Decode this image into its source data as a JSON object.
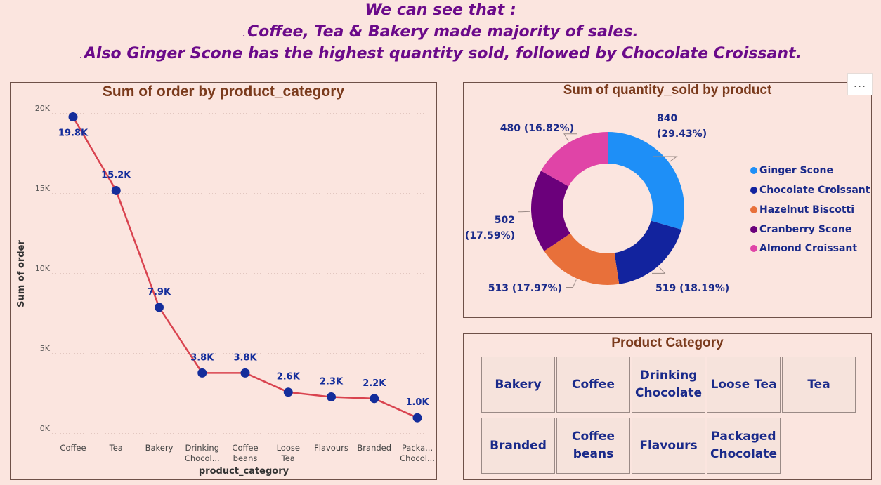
{
  "headline": {
    "line1": "We can see that :",
    "line2": "Coffee, Tea & Bakery made majority of sales.",
    "line3": "Also Ginger Scone has the highest quantity sold, followed by Chocolate Croissant.",
    "bullet": "."
  },
  "line_panel": {
    "title": "Sum of order by product_category"
  },
  "pie_panel": {
    "title": "Sum of quantity_sold by product",
    "more_label": "..."
  },
  "slicer": {
    "title": "Product Category",
    "row1": [
      "Bakery",
      "Coffee",
      "Drinking Chocolate",
      "Loose Tea",
      "Tea"
    ],
    "row2": [
      "Branded",
      "Coffee beans",
      "Flavours",
      "Packaged Chocolate"
    ]
  },
  "chart_data": [
    {
      "type": "line",
      "title": "Sum of order by product_category",
      "xlabel": "product_category",
      "ylabel": "Sum of order",
      "ylim": [
        0,
        20000
      ],
      "yticks": [
        "0K",
        "5K",
        "10K",
        "15K",
        "20K"
      ],
      "categories": [
        "Coffee",
        "Tea",
        "Bakery",
        "Drinking Chocolate",
        "Coffee beans",
        "Loose Tea",
        "Flavours",
        "Branded",
        "Packaged Chocolate"
      ],
      "tick_labels": [
        [
          "Coffee"
        ],
        [
          "Tea"
        ],
        [
          "Bakery"
        ],
        [
          "Drinking",
          "Chocol..."
        ],
        [
          "Coffee",
          "beans"
        ],
        [
          "Loose",
          "Tea"
        ],
        [
          "Flavours"
        ],
        [
          "Branded"
        ],
        [
          "Packa...",
          "Chocol..."
        ]
      ],
      "values": [
        19800,
        15200,
        7900,
        3800,
        3800,
        2600,
        2300,
        2200,
        1000
      ],
      "data_labels": [
        "19.8K",
        "15.2K",
        "7.9K",
        "3.8K",
        "3.8K",
        "2.6K",
        "2.3K",
        "2.2K",
        "1.0K"
      ],
      "grid": true,
      "colors": {
        "line": "#d9434f",
        "marker": "#142d9b"
      }
    },
    {
      "type": "pie",
      "title": "Sum of quantity_sold by product",
      "categories": [
        "Ginger Scone",
        "Chocolate Croissant",
        "Hazelnut Biscotti",
        "Cranberry Scone",
        "Almond Croissant"
      ],
      "values": [
        840,
        519,
        513,
        502,
        480
      ],
      "data_labels": [
        [
          "840",
          "(29.43%)"
        ],
        [
          "519 (18.19%)"
        ],
        [
          "513 (17.97%)"
        ],
        [
          "502",
          "(17.59%)"
        ],
        [
          "480 (16.82%)"
        ]
      ],
      "colors": [
        "#1e8ff7",
        "#12239e",
        "#e8703a",
        "#6b007b",
        "#e044a7"
      ],
      "legend_position": "right"
    }
  ]
}
